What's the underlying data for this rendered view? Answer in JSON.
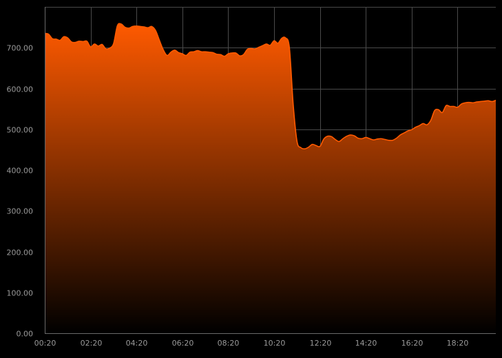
{
  "chart_data": {
    "type": "area",
    "title": "",
    "xlabel": "",
    "ylabel": "",
    "grid": true,
    "legend": "none",
    "ylim": [
      0,
      800
    ],
    "xlim": [
      "00:20",
      "20:00"
    ],
    "y_ticks": [
      "0.00",
      "100.00",
      "200.00",
      "300.00",
      "400.00",
      "500.00",
      "600.00",
      "700.00"
    ],
    "x_ticks": [
      "00:20",
      "02:20",
      "04:20",
      "06:20",
      "08:20",
      "10:20",
      "12:20",
      "14:20",
      "16:20",
      "18:20"
    ],
    "colors": {
      "line": "#ff5a00",
      "fill_top": "#ff5a00",
      "fill_bottom": "#000000",
      "grid": "#4a4a4a",
      "background": "#000000"
    },
    "series": [
      {
        "x": [
          "00:20",
          "00:30",
          "00:40",
          "00:50",
          "01:00",
          "01:10",
          "01:20",
          "01:30",
          "01:40",
          "01:50",
          "02:00",
          "02:10",
          "02:20",
          "02:30",
          "02:40",
          "02:50",
          "03:00",
          "03:10",
          "03:20",
          "03:30",
          "03:40",
          "03:50",
          "04:00",
          "04:10",
          "04:20",
          "04:30",
          "04:40",
          "04:50",
          "05:00",
          "05:10",
          "05:20",
          "05:30",
          "05:40",
          "05:50",
          "06:00",
          "06:10",
          "06:20",
          "06:30",
          "06:40",
          "06:50",
          "07:00",
          "07:10",
          "07:20",
          "07:30",
          "07:40",
          "07:50",
          "08:00",
          "08:10",
          "08:20",
          "08:30",
          "08:40",
          "08:50",
          "09:00",
          "09:10",
          "09:20",
          "09:30",
          "09:40",
          "09:50",
          "10:00",
          "10:10",
          "10:20",
          "10:30",
          "10:40",
          "10:50",
          "11:00",
          "11:10",
          "11:20",
          "11:30",
          "11:40",
          "11:50",
          "12:00",
          "12:10",
          "12:20",
          "12:30",
          "12:40",
          "12:50",
          "13:00",
          "13:10",
          "13:20",
          "13:30",
          "13:40",
          "13:50",
          "14:00",
          "14:10",
          "14:20",
          "14:30",
          "14:40",
          "14:50",
          "15:00",
          "15:10",
          "15:20",
          "15:30",
          "15:40",
          "15:50",
          "16:00",
          "16:10",
          "16:20",
          "16:30",
          "16:40",
          "16:50",
          "17:00",
          "17:10",
          "17:20",
          "17:30",
          "17:40",
          "17:50",
          "18:00",
          "18:10",
          "18:20",
          "18:30",
          "18:40",
          "18:50",
          "19:00",
          "19:10",
          "19:20",
          "19:30",
          "19:40",
          "19:50",
          "20:00"
        ],
        "values": [
          735,
          733,
          722,
          721,
          718,
          727,
          724,
          714,
          713,
          716,
          715,
          716,
          702,
          709,
          704,
          708,
          697,
          699,
          710,
          754,
          758,
          750,
          748,
          752,
          753,
          752,
          751,
          749,
          752,
          742,
          718,
          695,
          681,
          689,
          694,
          688,
          685,
          681,
          689,
          690,
          693,
          690,
          690,
          689,
          688,
          684,
          683,
          679,
          685,
          687,
          687,
          680,
          683,
          696,
          698,
          697,
          701,
          705,
          709,
          706,
          717,
          711,
          723,
          724,
          700,
          560,
          470,
          455,
          452,
          456,
          463,
          460,
          458,
          476,
          483,
          482,
          475,
          470,
          477,
          483,
          486,
          484,
          478,
          477,
          480,
          477,
          474,
          476,
          477,
          475,
          473,
          473,
          478,
          486,
          491,
          496,
          499,
          505,
          509,
          514,
          511,
          522,
          546,
          548,
          541,
          558,
          556,
          556,
          554,
          562,
          565,
          566,
          565,
          567,
          568,
          569,
          570,
          568,
          571
        ]
      }
    ]
  }
}
